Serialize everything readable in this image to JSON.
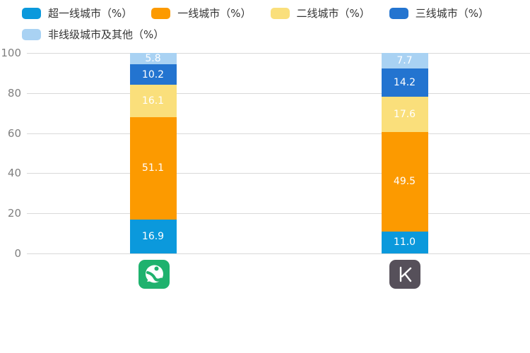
{
  "chart_data": {
    "type": "bar",
    "stacked": true,
    "title": "",
    "xlabel": "",
    "ylabel": "",
    "ylim": [
      0,
      100
    ],
    "yticks": [
      0,
      20,
      40,
      60,
      80,
      100
    ],
    "grid": true,
    "legend_position": "top-left",
    "categories": [
      {
        "icon": "codoon-app-icon"
      },
      {
        "icon": "keep-app-icon"
      }
    ],
    "series": [
      {
        "name": "超一线城市（%）",
        "color": "#0B99DC",
        "values": [
          16.9,
          11.0
        ],
        "labels": [
          "16.9",
          "11.0"
        ]
      },
      {
        "name": "一线城市（%）",
        "color": "#FC9A00",
        "values": [
          51.1,
          49.5
        ],
        "labels": [
          "51.1",
          "49.5"
        ]
      },
      {
        "name": "二线城市（%）",
        "color": "#FADF7B",
        "values": [
          16.1,
          17.6
        ],
        "labels": [
          "16.1",
          "17.6"
        ]
      },
      {
        "name": "三线城市（%）",
        "color": "#2374D0",
        "values": [
          10.2,
          14.2
        ],
        "labels": [
          "10.2",
          "14.2"
        ]
      },
      {
        "name": "非线级城市及其他（%）",
        "color": "#A9D2F3",
        "values": [
          5.8,
          7.7
        ],
        "labels": [
          "5.8",
          "7.7"
        ]
      }
    ],
    "data_label_color": "#ffffff"
  },
  "icons": {
    "codoon_background": "#1FB26E",
    "keep_background": "#56505A",
    "glyph_color": "#ffffff"
  }
}
